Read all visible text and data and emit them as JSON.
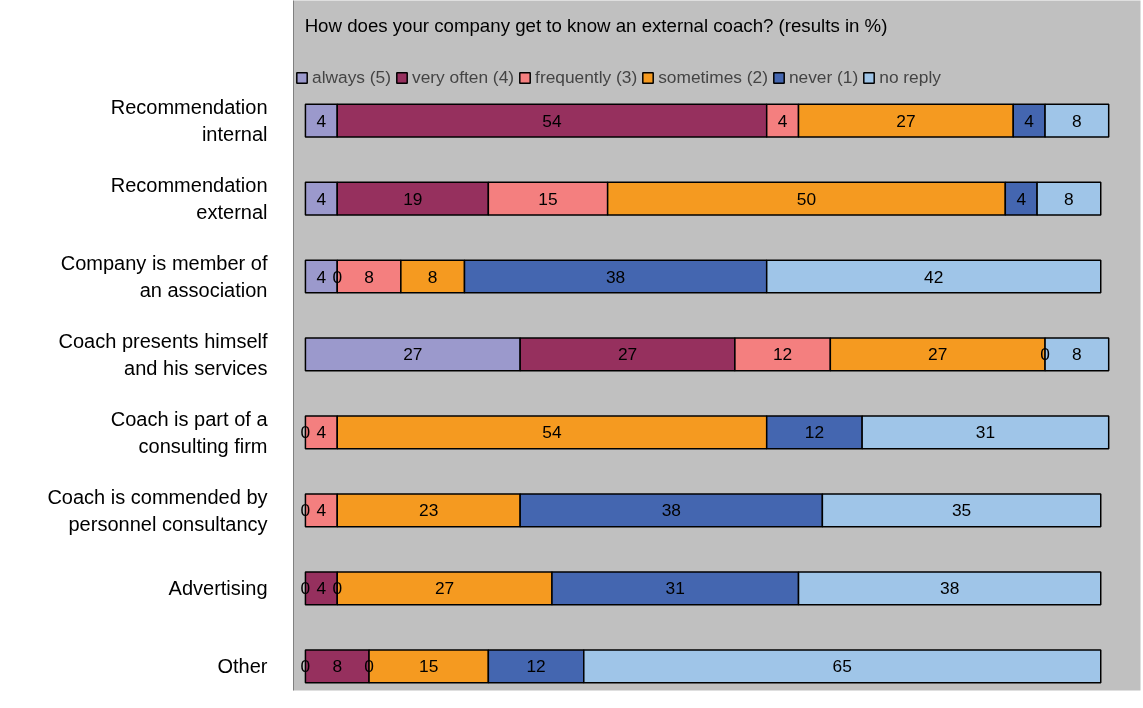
{
  "chart_data": {
    "type": "bar",
    "orientation": "horizontal",
    "stacked": true,
    "title": "How does your company get to know an external coach? (results in %)",
    "categories": [
      "Recommendation internal",
      "Recommendation external",
      "Company is member of an association",
      "Coach presents himself and his services",
      "Coach is part of a consulting firm",
      "Coach is commended by personnel consultancy",
      "Advertising",
      "Other"
    ],
    "series": [
      {
        "name": "always (5)",
        "color": "#9b99cc",
        "values": [
          4,
          4,
          4,
          27,
          null,
          null,
          null,
          null
        ]
      },
      {
        "name": "very often (4)",
        "color": "#96305e",
        "values": [
          54,
          19,
          null,
          27,
          null,
          null,
          4,
          8
        ]
      },
      {
        "name": "frequently (3)",
        "color": "#f47f7f",
        "values": [
          4,
          15,
          8,
          12,
          4,
          4,
          null,
          null
        ]
      },
      {
        "name": "sometimes (2)",
        "color": "#f59a20",
        "values": [
          27,
          50,
          8,
          27,
          54,
          23,
          27,
          15
        ]
      },
      {
        "name": "never (1)",
        "color": "#4466b0",
        "values": [
          4,
          4,
          38,
          null,
          12,
          38,
          31,
          12
        ]
      },
      {
        "name": "no reply",
        "color": "#9fc5e8",
        "values": [
          8,
          8,
          42,
          8,
          31,
          35,
          38,
          65
        ]
      }
    ],
    "annotations": [
      {
        "text": "0",
        "x": 4,
        "y": "Company is member of an association"
      },
      {
        "text": "0",
        "x": 93,
        "y": "Coach presents himself and his services"
      },
      {
        "text": "0",
        "x": 0,
        "y": "Coach is part of a consulting firm"
      },
      {
        "text": "0",
        "x": 0,
        "y": "Coach is commended by personnel consultancy"
      },
      {
        "text": "0",
        "x": 0,
        "y": "Advertising"
      },
      {
        "text": "0",
        "x": 4,
        "y": "Advertising"
      },
      {
        "text": "0",
        "x": 0,
        "y": "Other"
      },
      {
        "text": "0",
        "x": 8,
        "y": "Other"
      }
    ],
    "xlim": [
      -1.5,
      105
    ],
    "data_labels": true,
    "legend": "top",
    "tick_labels": "y",
    "grid": false
  }
}
